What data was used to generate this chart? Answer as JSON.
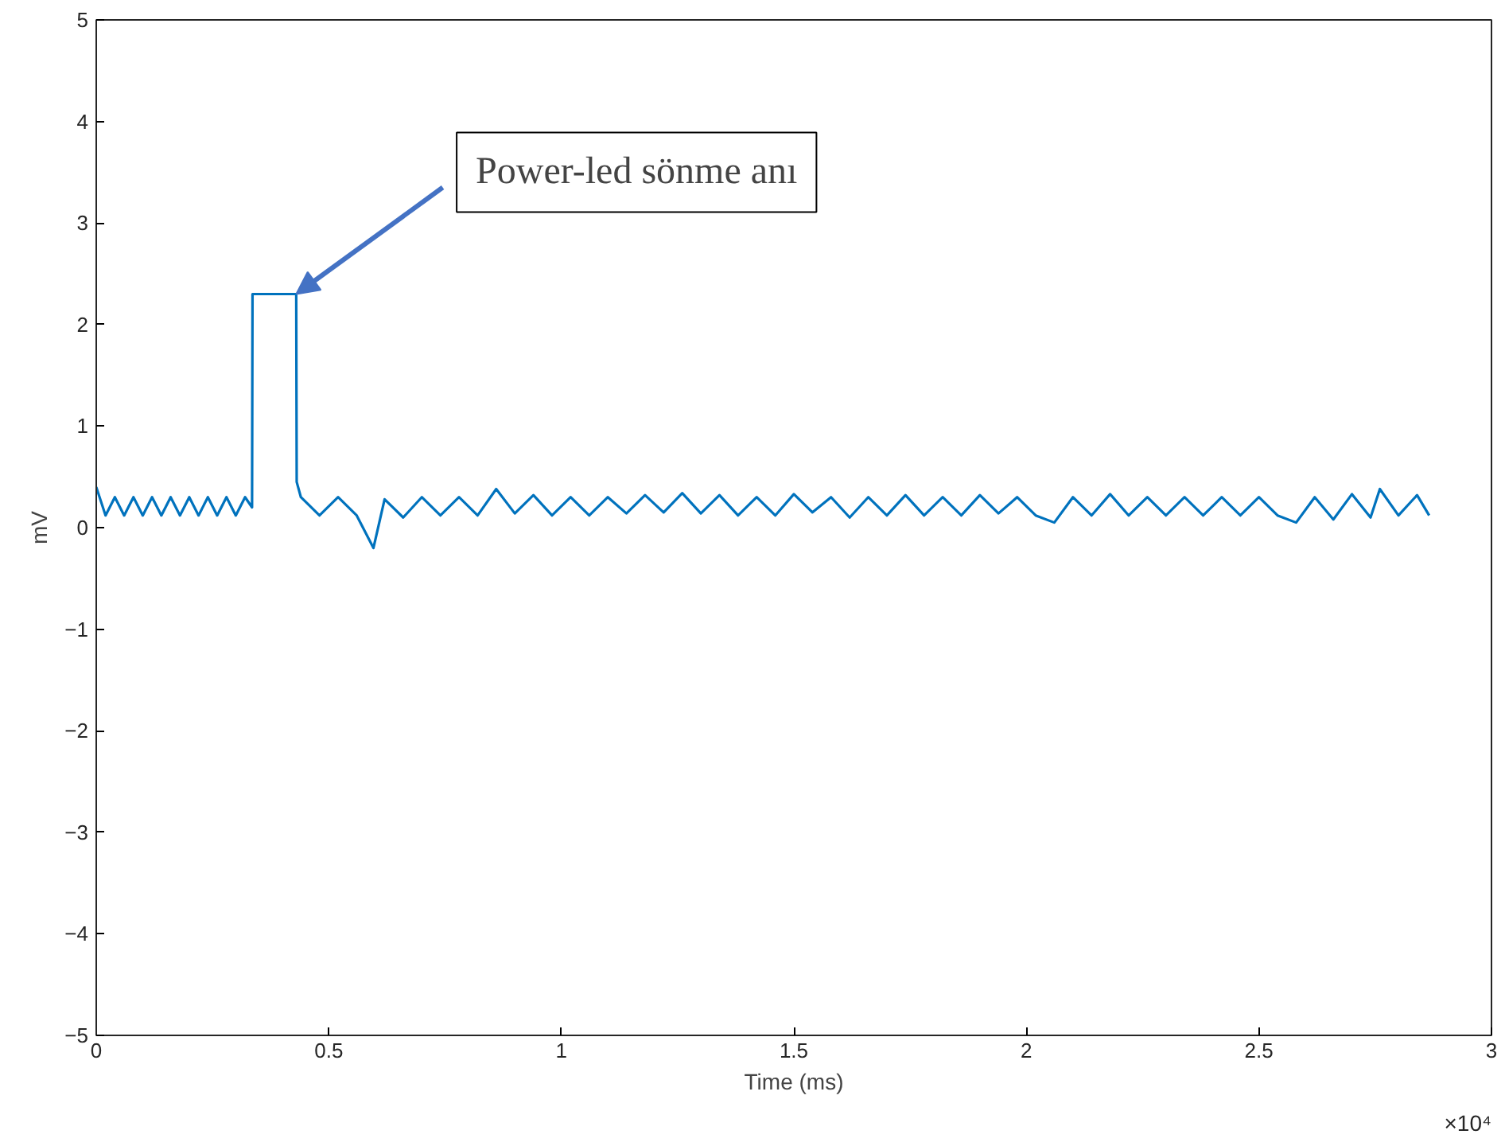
{
  "chart_data": {
    "type": "line",
    "xlabel": "Time (ms)",
    "ylabel": "mV",
    "xlim": [
      0,
      3
    ],
    "ylim": [
      -5,
      5
    ],
    "xticks": [
      0,
      0.5,
      1,
      1.5,
      2,
      2.5,
      3
    ],
    "yticks": [
      -5,
      -4,
      -3,
      -2,
      -1,
      0,
      1,
      2,
      3,
      4,
      5
    ],
    "line_style": "solid",
    "marker": "none",
    "series": [
      {
        "color": "#0072bd",
        "x": [
          0,
          0.02,
          0.04,
          0.06,
          0.08,
          0.1,
          0.12,
          0.14,
          0.16,
          0.18,
          0.2,
          0.22,
          0.24,
          0.26,
          0.28,
          0.3,
          0.32,
          0.335,
          0.336,
          0.43,
          0.431,
          0.44,
          0.48,
          0.52,
          0.56,
          0.596,
          0.62,
          0.66,
          0.7,
          0.74,
          0.78,
          0.82,
          0.86,
          0.9,
          0.94,
          0.98,
          1.02,
          1.06,
          1.1,
          1.14,
          1.18,
          1.22,
          1.26,
          1.3,
          1.34,
          1.38,
          1.42,
          1.46,
          1.5,
          1.54,
          1.58,
          1.62,
          1.66,
          1.7,
          1.74,
          1.78,
          1.82,
          1.86,
          1.9,
          1.94,
          1.98,
          2.02,
          2.06,
          2.1,
          2.14,
          2.18,
          2.22,
          2.26,
          2.3,
          2.34,
          2.38,
          2.42,
          2.46,
          2.5,
          2.54,
          2.58,
          2.62,
          2.66,
          2.7,
          2.74,
          2.76,
          2.8,
          2.84,
          2.866
        ],
        "values": [
          0.4,
          0.12,
          0.3,
          0.12,
          0.3,
          0.12,
          0.3,
          0.12,
          0.3,
          0.12,
          0.3,
          0.12,
          0.3,
          0.12,
          0.3,
          0.12,
          0.3,
          0.2,
          2.3,
          2.3,
          0.45,
          0.3,
          0.12,
          0.3,
          0.12,
          -0.2,
          0.28,
          0.1,
          0.3,
          0.12,
          0.3,
          0.12,
          0.38,
          0.14,
          0.32,
          0.12,
          0.3,
          0.12,
          0.3,
          0.14,
          0.32,
          0.15,
          0.34,
          0.14,
          0.32,
          0.12,
          0.3,
          0.12,
          0.33,
          0.15,
          0.3,
          0.1,
          0.3,
          0.12,
          0.32,
          0.12,
          0.3,
          0.12,
          0.32,
          0.14,
          0.3,
          0.12,
          0.05,
          0.3,
          0.12,
          0.33,
          0.12,
          0.3,
          0.12,
          0.3,
          0.12,
          0.3,
          0.12,
          0.3,
          0.12,
          0.05,
          0.3,
          0.08,
          0.33,
          0.1,
          0.38,
          0.12,
          0.32,
          0.12
        ]
      }
    ],
    "annotations": [
      {
        "text": "Power-led sönme anı",
        "x": 0.43,
        "y": 2.3
      },
      "×10⁴"
    ]
  }
}
